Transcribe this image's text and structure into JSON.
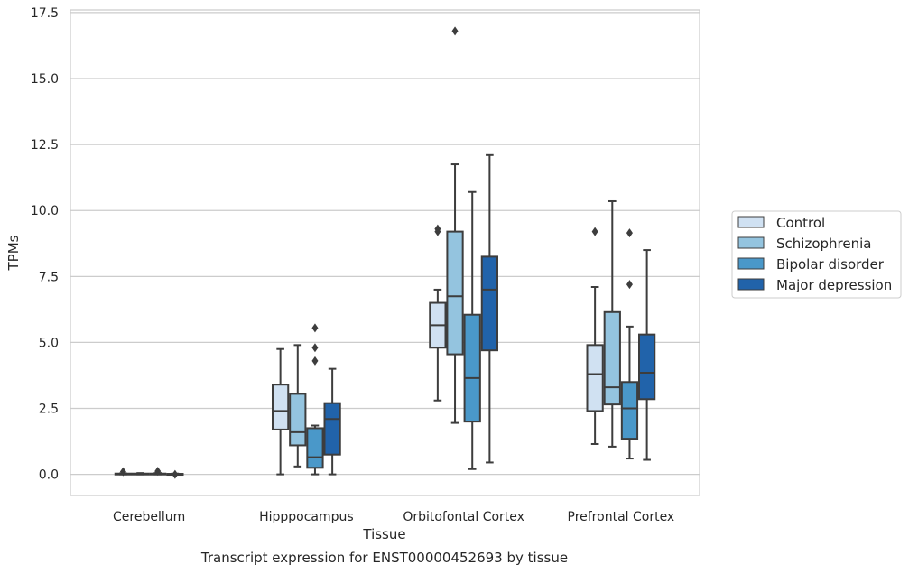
{
  "chart_data": {
    "type": "box",
    "title": "",
    "caption": "Transcript expression for ENST00000452693 by tissue",
    "xlabel": "Tissue",
    "ylabel": "TPMs",
    "ylim": [
      -0.8,
      17.6
    ],
    "yticks": [
      "0.0",
      "2.5",
      "5.0",
      "7.5",
      "10.0",
      "12.5",
      "15.0",
      "17.5"
    ],
    "ytick_values": [
      0,
      2.5,
      5,
      7.5,
      10,
      12.5,
      15,
      17.5
    ],
    "grid": "horizontal",
    "legend_position": "right",
    "categories": [
      "Cerebellum",
      "Hipppocampus",
      "Orbitofontal Cortex",
      "Prefrontal Cortex"
    ],
    "series": [
      {
        "name": "Control",
        "color": "#d0e1f2",
        "boxes": [
          {
            "whislo": 0.0,
            "q1": 0.0,
            "med": 0.02,
            "q3": 0.03,
            "whishi": 0.04,
            "fliers": [
              0.1
            ]
          },
          {
            "whislo": 0.0,
            "q1": 1.7,
            "med": 2.4,
            "q3": 3.4,
            "whishi": 4.75,
            "fliers": []
          },
          {
            "whislo": 2.8,
            "q1": 4.8,
            "med": 5.65,
            "q3": 6.5,
            "whishi": 7.0,
            "fliers": [
              9.2,
              9.3
            ]
          },
          {
            "whislo": 1.15,
            "q1": 2.4,
            "med": 3.8,
            "q3": 4.9,
            "whishi": 7.1,
            "fliers": [
              9.2
            ]
          }
        ]
      },
      {
        "name": "Schizophrenia",
        "color": "#94c4df",
        "boxes": [
          {
            "whislo": 0.0,
            "q1": 0.0,
            "med": 0.02,
            "q3": 0.03,
            "whishi": 0.05,
            "fliers": []
          },
          {
            "whislo": 0.3,
            "q1": 1.1,
            "med": 1.6,
            "q3": 3.05,
            "whishi": 4.9,
            "fliers": []
          },
          {
            "whislo": 1.95,
            "q1": 4.55,
            "med": 6.75,
            "q3": 9.2,
            "whishi": 11.75,
            "fliers": [
              16.8
            ]
          },
          {
            "whislo": 1.05,
            "q1": 2.65,
            "med": 3.3,
            "q3": 6.15,
            "whishi": 10.35,
            "fliers": []
          }
        ]
      },
      {
        "name": "Bipolar disorder",
        "color": "#4a98c9",
        "boxes": [
          {
            "whislo": 0.0,
            "q1": 0.0,
            "med": 0.02,
            "q3": 0.03,
            "whishi": 0.05,
            "fliers": [
              0.12
            ]
          },
          {
            "whislo": 0.0,
            "q1": 0.25,
            "med": 0.65,
            "q3": 1.75,
            "whishi": 1.85,
            "fliers": [
              4.3,
              4.8,
              5.55
            ]
          },
          {
            "whislo": 0.2,
            "q1": 2.0,
            "med": 3.65,
            "q3": 6.05,
            "whishi": 10.7,
            "fliers": []
          },
          {
            "whislo": 0.6,
            "q1": 1.35,
            "med": 2.5,
            "q3": 3.5,
            "whishi": 5.6,
            "fliers": [
              7.2,
              9.15
            ]
          }
        ]
      },
      {
        "name": "Major depression",
        "color": "#2163aa",
        "boxes": [
          {
            "whislo": 0.0,
            "q1": 0.0,
            "med": 0.01,
            "q3": 0.02,
            "whishi": 0.03,
            "fliers": [
              0.0
            ]
          },
          {
            "whislo": 0.0,
            "q1": 0.75,
            "med": 2.1,
            "q3": 2.7,
            "whishi": 4.0,
            "fliers": []
          },
          {
            "whislo": 0.45,
            "q1": 4.7,
            "med": 7.0,
            "q3": 8.25,
            "whishi": 12.1,
            "fliers": []
          },
          {
            "whislo": 0.55,
            "q1": 2.85,
            "med": 3.85,
            "q3": 5.3,
            "whishi": 8.5,
            "fliers": []
          }
        ]
      }
    ]
  }
}
